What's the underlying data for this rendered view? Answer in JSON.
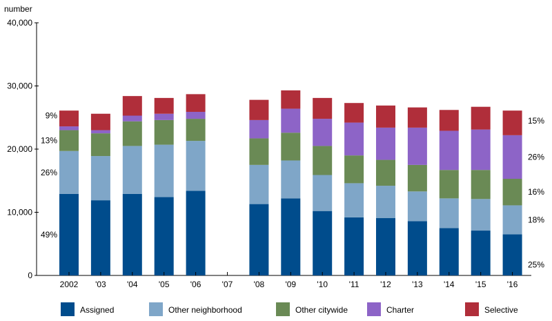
{
  "chart_data": {
    "type": "bar",
    "stacked": true,
    "ylabel": "number",
    "ylim": [
      0,
      40000
    ],
    "yticks": [
      "0",
      "10,000",
      "20,000",
      "30,000",
      "40,000"
    ],
    "categories": [
      "2002",
      "'03",
      "'04",
      "'05",
      "'06",
      "'07",
      "'08",
      "'09",
      "'10",
      "'11",
      "'12",
      "'13",
      "'14",
      "'15",
      "'16"
    ],
    "series": [
      {
        "name": "Assigned",
        "color": "#004c8c",
        "values": [
          12900,
          11900,
          12900,
          12400,
          13400,
          null,
          11300,
          12200,
          10200,
          9200,
          9100,
          8600,
          7500,
          7100,
          6500
        ]
      },
      {
        "name": "Other neighborhood",
        "color": "#7fa6c8",
        "values": [
          6800,
          7000,
          7600,
          8300,
          7900,
          null,
          6200,
          6000,
          5700,
          5400,
          5100,
          4700,
          4700,
          5000,
          4600
        ]
      },
      {
        "name": "Other citywide",
        "color": "#6a8a55",
        "values": [
          3300,
          3600,
          3900,
          3900,
          3500,
          null,
          4200,
          4400,
          4600,
          4400,
          4100,
          4200,
          4500,
          4600,
          4200
        ]
      },
      {
        "name": "Charter",
        "color": "#8d64c7",
        "values": [
          600,
          500,
          900,
          1000,
          1100,
          null,
          2900,
          3800,
          4300,
          5200,
          5100,
          5900,
          6200,
          6400,
          6900
        ]
      },
      {
        "name": "Selective",
        "color": "#b02e3a",
        "values": [
          2500,
          2600,
          3100,
          2500,
          2800,
          null,
          3200,
          2900,
          3300,
          3100,
          3500,
          3200,
          3300,
          3600,
          3900
        ]
      }
    ],
    "left_annotations": [
      {
        "series": "Selective",
        "label": "9%"
      },
      {
        "series": "Other citywide",
        "label": "13%"
      },
      {
        "series": "Other neighborhood",
        "label": "26%"
      },
      {
        "series": "Assigned",
        "label": "49%"
      }
    ],
    "right_annotations": [
      {
        "series": "Selective",
        "label": "15%"
      },
      {
        "series": "Charter",
        "label": "26%"
      },
      {
        "series": "Other citywide",
        "label": "16%"
      },
      {
        "series": "Other neighborhood",
        "label": "18%"
      },
      {
        "series": "Assigned",
        "label": "25%"
      }
    ],
    "grid": false,
    "legend": "bottom"
  }
}
